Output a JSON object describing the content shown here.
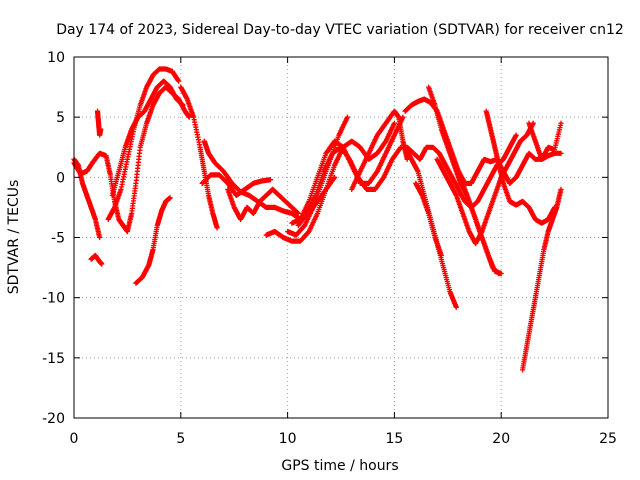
{
  "chart_data": {
    "type": "scatter",
    "title": "Day 174 of 2023, Sidereal Day-to-day VTEC variation (SDTVAR) for receiver cn12",
    "xlabel": "GPS time / hours",
    "ylabel": "SDTVAR / TECUs",
    "xlim": [
      0,
      25
    ],
    "ylim": [
      -20,
      10
    ],
    "xticks": [
      0,
      5,
      10,
      15,
      20,
      25
    ],
    "yticks": [
      -20,
      -15,
      -10,
      -5,
      0,
      5,
      10
    ],
    "grid": true,
    "marker": "+",
    "color": "#ff0000",
    "series": [
      {
        "name": "s1",
        "points": [
          [
            0.0,
            1.5
          ],
          [
            0.2,
            1.0
          ],
          [
            0.4,
            -0.5
          ],
          [
            0.6,
            -1.5
          ],
          [
            0.8,
            -2.5
          ],
          [
            1.0,
            -3.5
          ],
          [
            1.2,
            -5.0
          ]
        ]
      },
      {
        "name": "s2",
        "points": [
          [
            0.0,
            1.2
          ],
          [
            0.3,
            0.3
          ],
          [
            0.6,
            0.5
          ],
          [
            0.9,
            1.3
          ],
          [
            1.2,
            2.0
          ],
          [
            1.5,
            1.8
          ],
          [
            1.7,
            0.2
          ],
          [
            1.9,
            -2.0
          ],
          [
            2.1,
            -3.5
          ],
          [
            2.3,
            -4.0
          ],
          [
            2.5,
            -4.5
          ],
          [
            2.7,
            -3.0
          ],
          [
            2.9,
            -0.5
          ],
          [
            3.1,
            2.5
          ],
          [
            3.4,
            4.5
          ],
          [
            3.7,
            6.0
          ],
          [
            4.0,
            7.0
          ],
          [
            4.3,
            7.5
          ],
          [
            4.6,
            7.0
          ],
          [
            4.9,
            6.5
          ],
          [
            5.2,
            5.5
          ],
          [
            5.4,
            5.0
          ]
        ]
      },
      {
        "name": "s3",
        "points": [
          [
            1.1,
            5.5
          ],
          [
            1.15,
            4.5
          ],
          [
            1.2,
            3.5
          ],
          [
            1.25,
            4.0
          ]
        ]
      },
      {
        "name": "s4",
        "points": [
          [
            0.8,
            -6.8
          ],
          [
            1.0,
            -6.5
          ],
          [
            1.2,
            -7.0
          ],
          [
            1.3,
            -7.2
          ]
        ]
      },
      {
        "name": "s5",
        "points": [
          [
            1.6,
            -3.5
          ],
          [
            1.9,
            -2.5
          ],
          [
            2.2,
            -1.0
          ],
          [
            2.5,
            1.5
          ],
          [
            2.8,
            4.0
          ],
          [
            3.1,
            6.0
          ],
          [
            3.4,
            7.5
          ],
          [
            3.7,
            8.5
          ],
          [
            4.0,
            9.0
          ],
          [
            4.3,
            9.0
          ],
          [
            4.6,
            8.8
          ],
          [
            4.9,
            8.0
          ]
        ]
      },
      {
        "name": "s6",
        "points": [
          [
            1.8,
            -1.5
          ],
          [
            2.1,
            0.5
          ],
          [
            2.4,
            2.5
          ],
          [
            2.7,
            4.0
          ],
          [
            3.0,
            5.0
          ],
          [
            3.3,
            5.5
          ],
          [
            3.6,
            6.5
          ],
          [
            3.9,
            7.5
          ],
          [
            4.2,
            8.0
          ],
          [
            4.5,
            7.5
          ],
          [
            4.8,
            6.5
          ],
          [
            5.1,
            6.0
          ]
        ]
      },
      {
        "name": "s7",
        "points": [
          [
            2.9,
            -8.8
          ],
          [
            3.2,
            -8.3
          ],
          [
            3.5,
            -7.3
          ],
          [
            3.7,
            -6.0
          ],
          [
            3.9,
            -4.0
          ],
          [
            4.1,
            -2.8
          ],
          [
            4.3,
            -2.0
          ],
          [
            4.5,
            -1.7
          ]
        ]
      },
      {
        "name": "s8",
        "points": [
          [
            5.0,
            7.5
          ],
          [
            5.3,
            6.5
          ],
          [
            5.6,
            5.0
          ],
          [
            5.9,
            2.5
          ],
          [
            6.1,
            0.5
          ],
          [
            6.3,
            -1.5
          ],
          [
            6.5,
            -3.0
          ],
          [
            6.7,
            -4.2
          ]
        ]
      },
      {
        "name": "s9",
        "points": [
          [
            6.1,
            3.0
          ],
          [
            6.3,
            2.0
          ],
          [
            6.6,
            1.2
          ],
          [
            7.0,
            0.5
          ],
          [
            7.4,
            -0.5
          ],
          [
            7.8,
            -1.2
          ],
          [
            8.2,
            -1.5
          ],
          [
            8.6,
            -2.0
          ],
          [
            9.0,
            -2.5
          ],
          [
            9.4,
            -2.5
          ],
          [
            9.8,
            -2.8
          ],
          [
            10.2,
            -3.0
          ],
          [
            10.6,
            -3.5
          ],
          [
            11.0,
            -3.0
          ],
          [
            11.4,
            -2.0
          ],
          [
            11.8,
            -1.0
          ],
          [
            12.2,
            0.0
          ]
        ]
      },
      {
        "name": "s10",
        "points": [
          [
            6.0,
            -0.5
          ],
          [
            6.4,
            0.2
          ],
          [
            6.8,
            0.2
          ],
          [
            7.2,
            -0.5
          ],
          [
            7.6,
            -1.5
          ],
          [
            8.0,
            -1.0
          ],
          [
            8.4,
            -0.5
          ],
          [
            8.8,
            -0.3
          ],
          [
            9.2,
            -0.2
          ]
        ]
      },
      {
        "name": "s11",
        "points": [
          [
            7.2,
            -1.0
          ],
          [
            7.5,
            -2.5
          ],
          [
            7.8,
            -3.5
          ],
          [
            8.1,
            -2.5
          ],
          [
            8.4,
            -3.0
          ],
          [
            8.7,
            -2.0
          ],
          [
            9.0,
            -1.5
          ],
          [
            9.3,
            -1.0
          ],
          [
            9.6,
            -1.5
          ],
          [
            9.9,
            -2.0
          ],
          [
            10.2,
            -2.5
          ],
          [
            10.5,
            -3.0
          ]
        ]
      },
      {
        "name": "s12",
        "points": [
          [
            9.0,
            -4.8
          ],
          [
            9.4,
            -4.5
          ],
          [
            9.8,
            -5.0
          ],
          [
            10.2,
            -5.3
          ],
          [
            10.6,
            -5.3
          ],
          [
            11.0,
            -4.5
          ],
          [
            11.4,
            -3.0
          ],
          [
            11.8,
            -1.0
          ],
          [
            12.2,
            1.0
          ],
          [
            12.6,
            2.5
          ],
          [
            13.0,
            3.0
          ],
          [
            13.4,
            2.5
          ],
          [
            13.8,
            1.5
          ],
          [
            14.2,
            2.0
          ],
          [
            14.6,
            3.0
          ],
          [
            15.0,
            4.5
          ]
        ]
      },
      {
        "name": "s13",
        "points": [
          [
            10.0,
            -4.5
          ],
          [
            10.4,
            -4.8
          ],
          [
            10.8,
            -4.0
          ],
          [
            11.2,
            -2.5
          ],
          [
            11.6,
            -0.5
          ],
          [
            12.0,
            1.5
          ],
          [
            12.4,
            3.5
          ],
          [
            12.8,
            5.0
          ]
        ]
      },
      {
        "name": "s14",
        "points": [
          [
            10.2,
            -3.8
          ],
          [
            10.6,
            -3.5
          ],
          [
            11.0,
            -2.0
          ],
          [
            11.4,
            0.0
          ],
          [
            11.8,
            2.0
          ],
          [
            12.2,
            3.0
          ],
          [
            12.6,
            2.5
          ],
          [
            13.0,
            1.0
          ],
          [
            13.4,
            -0.5
          ],
          [
            13.8,
            -0.5
          ],
          [
            14.2,
            0.5
          ],
          [
            14.6,
            2.0
          ],
          [
            15.0,
            3.5
          ],
          [
            15.4,
            5.0
          ]
        ]
      },
      {
        "name": "s15",
        "points": [
          [
            10.5,
            -4.0
          ],
          [
            10.9,
            -3.0
          ],
          [
            11.3,
            -1.5
          ],
          [
            11.7,
            0.5
          ],
          [
            12.1,
            2.0
          ],
          [
            12.5,
            2.5
          ],
          [
            12.9,
            1.5
          ],
          [
            13.3,
            0.0
          ],
          [
            13.7,
            -1.0
          ],
          [
            14.1,
            -1.0
          ],
          [
            14.5,
            0.0
          ],
          [
            14.9,
            1.5
          ],
          [
            15.3,
            2.5
          ]
        ]
      },
      {
        "name": "s16",
        "points": [
          [
            13.0,
            -1.0
          ],
          [
            13.4,
            0.5
          ],
          [
            13.8,
            2.0
          ],
          [
            14.2,
            3.5
          ],
          [
            14.6,
            4.5
          ],
          [
            15.0,
            5.5
          ],
          [
            15.2,
            5.0
          ],
          [
            15.4,
            3.0
          ],
          [
            15.6,
            1.5
          ]
        ]
      },
      {
        "name": "s17",
        "points": [
          [
            15.5,
            5.5
          ],
          [
            15.8,
            6.0
          ],
          [
            16.1,
            6.3
          ],
          [
            16.4,
            6.5
          ],
          [
            16.7,
            6.2
          ],
          [
            17.0,
            5.5
          ],
          [
            17.3,
            4.0
          ],
          [
            17.6,
            2.5
          ],
          [
            17.9,
            1.0
          ],
          [
            18.2,
            -0.5
          ],
          [
            18.5,
            -2.0
          ],
          [
            18.8,
            -3.5
          ],
          [
            19.1,
            -5.0
          ],
          [
            19.4,
            -6.5
          ],
          [
            19.7,
            -7.8
          ],
          [
            20.0,
            -8.0
          ]
        ]
      },
      {
        "name": "s18",
        "points": [
          [
            15.5,
            2.5
          ],
          [
            15.8,
            1.5
          ],
          [
            16.1,
            0.5
          ],
          [
            16.4,
            -1.5
          ],
          [
            16.7,
            -3.5
          ],
          [
            17.0,
            -5.5
          ],
          [
            17.3,
            -7.5
          ],
          [
            17.6,
            -9.5
          ],
          [
            17.9,
            -10.8
          ]
        ]
      },
      {
        "name": "s19",
        "points": [
          [
            16.0,
            -0.5
          ],
          [
            16.3,
            -1.5
          ],
          [
            16.6,
            -3.0
          ],
          [
            16.9,
            -5.0
          ],
          [
            17.2,
            -6.5
          ]
        ]
      },
      {
        "name": "s20",
        "points": [
          [
            16.6,
            7.5
          ],
          [
            16.9,
            6.0
          ],
          [
            17.2,
            4.0
          ],
          [
            17.5,
            2.5
          ],
          [
            17.8,
            1.0
          ],
          [
            18.1,
            -0.5
          ],
          [
            18.4,
            -1.5
          ],
          [
            18.7,
            -3.0
          ],
          [
            19.0,
            -4.5
          ],
          [
            19.3,
            -6.0
          ],
          [
            19.6,
            -7.5
          ],
          [
            19.9,
            -8.0
          ]
        ]
      },
      {
        "name": "s21",
        "points": [
          [
            15.6,
            2.5
          ],
          [
            15.9,
            2.0
          ],
          [
            16.2,
            1.5
          ],
          [
            16.5,
            2.5
          ],
          [
            16.8,
            2.5
          ],
          [
            17.1,
            2.0
          ],
          [
            17.4,
            1.0
          ],
          [
            17.7,
            0.0
          ],
          [
            18.0,
            -1.0
          ],
          [
            18.3,
            -2.0
          ],
          [
            18.6,
            -2.5
          ],
          [
            18.9,
            -2.0
          ],
          [
            19.2,
            -1.0
          ],
          [
            19.5,
            0.0
          ],
          [
            19.8,
            1.0
          ],
          [
            20.1,
            1.5
          ],
          [
            20.4,
            2.5
          ],
          [
            20.7,
            3.5
          ]
        ]
      },
      {
        "name": "s22",
        "points": [
          [
            17.0,
            1.5
          ],
          [
            17.3,
            0.5
          ],
          [
            17.6,
            -0.5
          ],
          [
            17.9,
            -1.5
          ],
          [
            18.2,
            -3.0
          ],
          [
            18.5,
            -4.5
          ],
          [
            18.8,
            -5.5
          ],
          [
            19.1,
            -4.5
          ],
          [
            19.4,
            -3.0
          ],
          [
            19.7,
            -1.5
          ],
          [
            20.0,
            0.0
          ],
          [
            20.3,
            1.0
          ],
          [
            20.6,
            2.0
          ],
          [
            20.9,
            3.0
          ],
          [
            21.2,
            3.5
          ],
          [
            21.5,
            4.5
          ]
        ]
      },
      {
        "name": "s23",
        "points": [
          [
            19.3,
            5.5
          ],
          [
            19.5,
            4.0
          ],
          [
            19.7,
            2.5
          ],
          [
            19.9,
            1.0
          ],
          [
            20.1,
            -0.5
          ],
          [
            20.4,
            -2.0
          ],
          [
            20.7,
            -2.3
          ],
          [
            21.0,
            -2.0
          ],
          [
            21.3,
            -2.5
          ],
          [
            21.6,
            -3.5
          ],
          [
            21.9,
            -3.8
          ],
          [
            22.2,
            -3.5
          ],
          [
            22.5,
            -2.5
          ]
        ]
      },
      {
        "name": "s24",
        "points": [
          [
            18.0,
            0.5
          ],
          [
            18.3,
            -0.5
          ],
          [
            18.6,
            -0.5
          ],
          [
            18.9,
            0.5
          ],
          [
            19.2,
            1.5
          ],
          [
            19.5,
            1.3
          ],
          [
            19.8,
            1.5
          ],
          [
            20.1,
            0.5
          ],
          [
            20.4,
            -0.5
          ],
          [
            20.7,
            0.0
          ],
          [
            21.0,
            1.0
          ],
          [
            21.3,
            2.0
          ],
          [
            21.6,
            1.5
          ],
          [
            21.9,
            1.5
          ],
          [
            22.2,
            1.8
          ],
          [
            22.5,
            2.0
          ],
          [
            22.8,
            2.0
          ]
        ]
      },
      {
        "name": "s25",
        "points": [
          [
            21.3,
            4.5
          ],
          [
            21.6,
            3.0
          ],
          [
            21.9,
            1.5
          ],
          [
            22.2,
            2.5
          ],
          [
            22.5,
            2.3
          ],
          [
            22.8,
            4.5
          ]
        ]
      },
      {
        "name": "s26",
        "points": [
          [
            21.0,
            -16.0
          ],
          [
            21.2,
            -14.0
          ],
          [
            21.4,
            -12.0
          ],
          [
            21.6,
            -10.0
          ],
          [
            21.8,
            -8.0
          ],
          [
            22.0,
            -6.0
          ],
          [
            22.2,
            -4.5
          ],
          [
            22.4,
            -3.5
          ],
          [
            22.6,
            -2.5
          ],
          [
            22.8,
            -1.0
          ]
        ]
      }
    ]
  }
}
